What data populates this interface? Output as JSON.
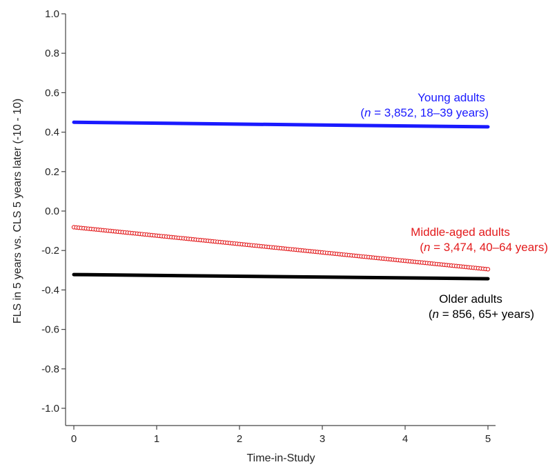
{
  "chart_data": {
    "type": "line",
    "xlabel": "Time-in-Study",
    "ylabel": "FLS in 5 years vs. CLS 5 years later (-10 - 10)",
    "xlim": [
      0,
      5
    ],
    "ylim": [
      -1.0,
      1.0
    ],
    "x_ticks": [
      0,
      1,
      2,
      3,
      4,
      5
    ],
    "x_tick_labels": [
      "0",
      "1",
      "2",
      "3",
      "4",
      "5"
    ],
    "y_ticks": [
      1.0,
      0.8,
      0.6,
      0.4,
      0.2,
      0.0,
      -0.2,
      -0.4,
      -0.6,
      -0.8,
      -1.0
    ],
    "y_tick_labels": [
      "1.0",
      "0.8",
      "0.6",
      "0.4",
      "0.2",
      "0.0",
      "-0.2",
      "-0.4",
      "-0.6",
      "-0.8",
      "-1.0"
    ],
    "grid": false,
    "legend": "inline labels at right",
    "series": [
      {
        "key": "young",
        "label_line1": "Young adults",
        "label_line2_italic": "n",
        "label_line2_rest": " = 3,852, 18–39 years)",
        "label_line2_open": "(",
        "color": "#1a1aff",
        "style": "solid",
        "x": [
          0,
          5
        ],
        "y": [
          0.45,
          0.427
        ]
      },
      {
        "key": "middle",
        "label_line1": "Middle-aged adults",
        "label_line2_italic": "n",
        "label_line2_rest": " = 3,474, 40–64 years)",
        "label_line2_open": "(",
        "color": "#e31a1c",
        "style": "hollow-circles",
        "x": [
          0,
          5
        ],
        "y": [
          -0.082,
          -0.295
        ]
      },
      {
        "key": "older",
        "label_line1": "Older adults",
        "label_line2_italic": "n",
        "label_line2_rest": " = 856, 65+ years)",
        "label_line2_open": "(",
        "color": "#000000",
        "style": "solid",
        "x": [
          0,
          5
        ],
        "y": [
          -0.322,
          -0.343
        ]
      }
    ]
  }
}
